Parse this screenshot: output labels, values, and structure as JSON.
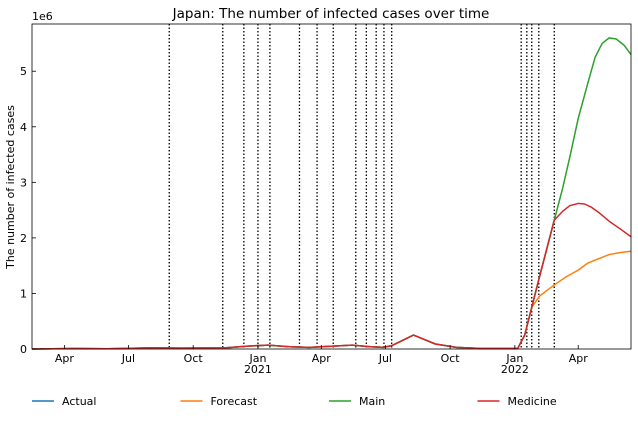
{
  "chart_data": {
    "type": "line",
    "title": "Japan: The number of infected cases over time",
    "ylabel": "The number of infected cases",
    "xlabel": "",
    "y_offset_text": "1e6",
    "x_range": [
      "2020-02-15",
      "2022-06-15"
    ],
    "ylim": [
      0,
      5.85
    ],
    "y_ticks": [
      0,
      1,
      2,
      3,
      4,
      5
    ],
    "x_ticks": [
      {
        "date": "2020-04-01",
        "label": "Apr",
        "sub": ""
      },
      {
        "date": "2020-07-01",
        "label": "Jul",
        "sub": ""
      },
      {
        "date": "2020-10-01",
        "label": "Oct",
        "sub": ""
      },
      {
        "date": "2021-01-01",
        "label": "Jan",
        "sub": "2021"
      },
      {
        "date": "2021-04-01",
        "label": "Apr",
        "sub": ""
      },
      {
        "date": "2021-07-01",
        "label": "Jul",
        "sub": ""
      },
      {
        "date": "2021-10-01",
        "label": "Oct",
        "sub": ""
      },
      {
        "date": "2022-01-01",
        "label": "Jan",
        "sub": "2022"
      },
      {
        "date": "2022-04-01",
        "label": "Apr",
        "sub": ""
      }
    ],
    "vlines": [
      "2020-08-28",
      "2020-11-12",
      "2020-12-12",
      "2021-01-01",
      "2021-01-18",
      "2021-03-01",
      "2021-03-26",
      "2021-04-18",
      "2021-05-20",
      "2021-06-04",
      "2021-06-18",
      "2021-06-29",
      "2021-07-10",
      "2022-01-10",
      "2022-01-18",
      "2022-01-25",
      "2022-02-04",
      "2022-02-26"
    ],
    "legend_position": "bottom",
    "series": [
      {
        "name": "Actual",
        "color": "#1f77b4",
        "x": [
          "2020-02-15",
          "2020-04-15",
          "2020-06-01",
          "2020-08-01",
          "2020-09-15",
          "2020-11-15",
          "2020-12-15",
          "2021-01-15",
          "2021-02-15",
          "2021-03-15",
          "2021-04-15",
          "2021-05-15",
          "2021-06-10",
          "2021-06-28",
          "2021-07-10",
          "2021-08-10",
          "2021-09-10",
          "2021-10-10",
          "2021-11-15",
          "2022-01-05",
          "2022-01-15",
          "2022-01-25",
          "2022-02-05",
          "2022-02-26"
        ],
        "y": [
          0.0,
          0.01,
          0.005,
          0.02,
          0.015,
          0.02,
          0.05,
          0.07,
          0.04,
          0.03,
          0.05,
          0.07,
          0.04,
          0.03,
          0.06,
          0.25,
          0.09,
          0.03,
          0.01,
          0.01,
          0.25,
          0.75,
          1.3,
          2.32
        ]
      },
      {
        "name": "Forecast",
        "color": "#ff7f0e",
        "x": [
          "2022-01-25",
          "2022-02-05",
          "2022-02-15",
          "2022-03-01",
          "2022-03-15",
          "2022-04-01",
          "2022-04-15",
          "2022-05-01",
          "2022-05-15",
          "2022-06-01",
          "2022-06-15"
        ],
        "y": [
          0.75,
          0.95,
          1.05,
          1.18,
          1.3,
          1.42,
          1.55,
          1.63,
          1.7,
          1.74,
          1.76
        ]
      },
      {
        "name": "Main",
        "color": "#2ca02c",
        "x": [
          "2020-02-15",
          "2020-04-15",
          "2020-06-01",
          "2020-08-01",
          "2020-09-15",
          "2020-11-15",
          "2020-12-15",
          "2021-01-15",
          "2021-02-15",
          "2021-03-15",
          "2021-04-15",
          "2021-05-15",
          "2021-06-10",
          "2021-06-28",
          "2021-07-10",
          "2021-08-10",
          "2021-09-10",
          "2021-10-10",
          "2021-11-15",
          "2022-01-05",
          "2022-01-15",
          "2022-01-25",
          "2022-02-05",
          "2022-02-26",
          "2022-03-10",
          "2022-03-20",
          "2022-04-01",
          "2022-04-15",
          "2022-04-25",
          "2022-05-05",
          "2022-05-15",
          "2022-05-25",
          "2022-06-05",
          "2022-06-15"
        ],
        "y": [
          0.0,
          0.01,
          0.005,
          0.02,
          0.015,
          0.02,
          0.05,
          0.07,
          0.04,
          0.03,
          0.05,
          0.07,
          0.04,
          0.03,
          0.06,
          0.25,
          0.09,
          0.03,
          0.01,
          0.01,
          0.25,
          0.75,
          1.3,
          2.32,
          2.9,
          3.45,
          4.15,
          4.8,
          5.25,
          5.5,
          5.6,
          5.58,
          5.47,
          5.3
        ]
      },
      {
        "name": "Medicine",
        "color": "#d62728",
        "x": [
          "2020-02-15",
          "2020-04-15",
          "2020-06-01",
          "2020-08-01",
          "2020-09-15",
          "2020-11-15",
          "2020-12-15",
          "2021-01-15",
          "2021-02-15",
          "2021-03-15",
          "2021-04-15",
          "2021-05-15",
          "2021-06-10",
          "2021-06-28",
          "2021-07-10",
          "2021-08-10",
          "2021-09-10",
          "2021-10-10",
          "2021-11-15",
          "2022-01-05",
          "2022-01-15",
          "2022-01-25",
          "2022-02-05",
          "2022-02-26",
          "2022-03-10",
          "2022-03-20",
          "2022-04-01",
          "2022-04-10",
          "2022-04-20",
          "2022-05-01",
          "2022-05-15",
          "2022-06-01",
          "2022-06-15"
        ],
        "y": [
          0.0,
          0.01,
          0.005,
          0.02,
          0.015,
          0.02,
          0.05,
          0.07,
          0.04,
          0.03,
          0.05,
          0.07,
          0.04,
          0.03,
          0.06,
          0.25,
          0.09,
          0.03,
          0.01,
          0.01,
          0.25,
          0.75,
          1.3,
          2.32,
          2.48,
          2.58,
          2.62,
          2.61,
          2.55,
          2.45,
          2.3,
          2.15,
          2.02
        ]
      }
    ]
  }
}
